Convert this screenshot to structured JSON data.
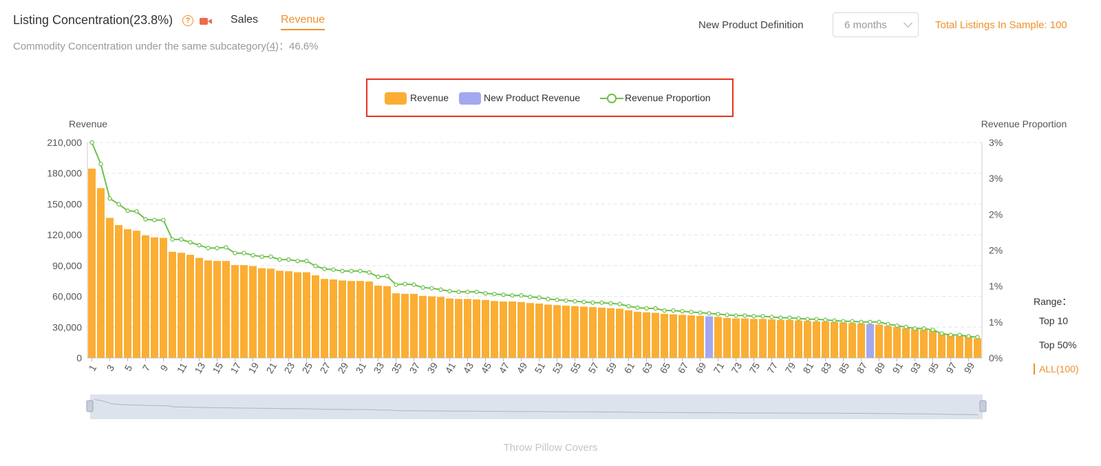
{
  "header": {
    "title": "Listing Concentration(23.8%)",
    "help_icon": "question-circle-icon",
    "video_icon": "video-camera-icon",
    "tabs": [
      {
        "label": "Sales",
        "active": false
      },
      {
        "label": "Revenue",
        "active": true
      }
    ],
    "subtitle_prefix": "Commodity Concentration under the same subcategory(",
    "subtitle_link": "4",
    "subtitle_suffix": ")：46.6%",
    "npd_label": "New Product Definition",
    "npd_value": "6 months",
    "total_label": "Total Listings In Sample: 100"
  },
  "range": {
    "label": "Range：",
    "options": [
      "Top 10",
      "Top 50%",
      "ALL(100)"
    ],
    "active_index": 2
  },
  "footer": {
    "category": "Throw Pillow Covers"
  },
  "colors": {
    "revenue": "#fbae33",
    "new_product": "#a3a8ef",
    "proportion": "#6cc04a",
    "accent": "#f0902a",
    "highlight": "#e8321e"
  },
  "chart_data": {
    "type": "bar",
    "legend": [
      "Revenue",
      "New Product Revenue",
      "Revenue Proportion"
    ],
    "legend_position": "top-center",
    "ylabel": "Revenue",
    "y2label": "Revenue Proportion",
    "ylim": [
      0,
      210000
    ],
    "y_ticks": [
      "0",
      "30,000",
      "60,000",
      "90,000",
      "120,000",
      "150,000",
      "180,000",
      "210,000"
    ],
    "y2lim": [
      0,
      3
    ],
    "y2_ticks": [
      "0%",
      "1%",
      "1%",
      "2%",
      "2%",
      "3%",
      "3%"
    ],
    "x_ticks": [
      "1",
      "3",
      "5",
      "7",
      "9",
      "11",
      "13",
      "15",
      "17",
      "19",
      "21",
      "23",
      "25",
      "27",
      "29",
      "31",
      "33",
      "35",
      "37",
      "39",
      "41",
      "43",
      "45",
      "47",
      "49",
      "51",
      "53",
      "55",
      "57",
      "59",
      "61",
      "63",
      "65",
      "67",
      "69",
      "71",
      "73",
      "75",
      "77",
      "79",
      "81",
      "83",
      "85",
      "87",
      "89",
      "91",
      "93",
      "95",
      "97",
      "99"
    ],
    "grid": true,
    "new_product_ranks": [
      70,
      88
    ],
    "series": [
      {
        "name": "Revenue",
        "values": [
          184500,
          165500,
          136500,
          129500,
          125500,
          124000,
          119500,
          117500,
          117000,
          103500,
          102500,
          100500,
          97500,
          95000,
          94500,
          94500,
          90500,
          90500,
          89500,
          87500,
          87000,
          85000,
          84500,
          83500,
          83500,
          80500,
          77000,
          76500,
          75500,
          75000,
          75000,
          74500,
          70500,
          70000,
          63000,
          62500,
          62500,
          60500,
          60000,
          59500,
          58000,
          57500,
          57500,
          57000,
          56500,
          55500,
          55000,
          55000,
          54500,
          53500,
          53000,
          52000,
          51500,
          51000,
          50500,
          50000,
          49500,
          49000,
          48500,
          48000,
          46500,
          45000,
          44500,
          44000,
          43000,
          42500,
          42000,
          41500,
          41000,
          40500,
          40000,
          39000,
          38500,
          38500,
          38000,
          38000,
          37500,
          37000,
          37000,
          36500,
          36000,
          35500,
          35500,
          35000,
          34500,
          34000,
          33500,
          33000,
          32500,
          31000,
          30000,
          29000,
          28000,
          27500,
          27000,
          24000,
          22500,
          21500,
          21000,
          19000
        ]
      },
      {
        "name": "Revenue Proportion",
        "values": [
          3.0,
          2.7,
          2.22,
          2.14,
          2.05,
          2.04,
          1.93,
          1.92,
          1.92,
          1.65,
          1.65,
          1.61,
          1.57,
          1.53,
          1.53,
          1.54,
          1.46,
          1.46,
          1.43,
          1.41,
          1.41,
          1.37,
          1.37,
          1.35,
          1.35,
          1.28,
          1.24,
          1.23,
          1.21,
          1.21,
          1.21,
          1.19,
          1.13,
          1.14,
          1.02,
          1.03,
          1.02,
          0.98,
          0.97,
          0.95,
          0.93,
          0.92,
          0.92,
          0.92,
          0.9,
          0.89,
          0.88,
          0.87,
          0.87,
          0.85,
          0.84,
          0.82,
          0.81,
          0.8,
          0.79,
          0.78,
          0.77,
          0.77,
          0.76,
          0.75,
          0.72,
          0.7,
          0.69,
          0.69,
          0.66,
          0.66,
          0.65,
          0.64,
          0.63,
          0.62,
          0.61,
          0.6,
          0.59,
          0.59,
          0.58,
          0.58,
          0.57,
          0.56,
          0.56,
          0.55,
          0.54,
          0.54,
          0.53,
          0.52,
          0.51,
          0.51,
          0.5,
          0.5,
          0.5,
          0.47,
          0.45,
          0.43,
          0.41,
          0.41,
          0.39,
          0.34,
          0.32,
          0.32,
          0.3,
          0.29
        ]
      }
    ]
  }
}
